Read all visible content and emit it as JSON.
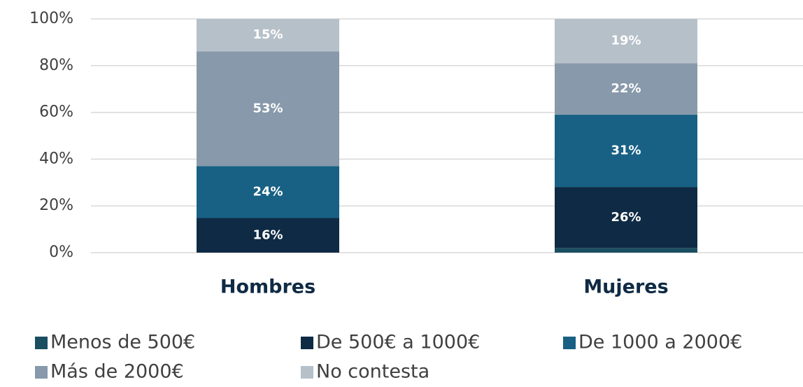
{
  "chart_data": {
    "type": "bar",
    "stacked": "percent",
    "categories": [
      "Hombres",
      "Mujeres"
    ],
    "series": [
      {
        "name": "Menos de 500€",
        "color": "#1a4e60",
        "values": [
          0,
          2
        ],
        "value_labels": [
          null,
          null
        ]
      },
      {
        "name": "De 500€ a 1000€",
        "color": "#0f2a44",
        "values": [
          16,
          26
        ],
        "value_labels": [
          "16%",
          "26%"
        ]
      },
      {
        "name": "De 1000 a 2000€",
        "color": "#186184",
        "values": [
          24,
          31
        ],
        "value_labels": [
          "24%",
          "31%"
        ]
      },
      {
        "name": "Más de 2000€",
        "color": "#8799aa",
        "values": [
          53,
          22
        ],
        "value_labels": [
          "53%",
          "22%"
        ]
      },
      {
        "name": "No contesta",
        "color": "#b6c0c9",
        "values": [
          15,
          19
        ],
        "value_labels": [
          "15%",
          "19%"
        ]
      }
    ],
    "ylim": [
      0,
      100
    ],
    "yticks": [
      {
        "value": 0,
        "label": "0%"
      },
      {
        "value": 20,
        "label": "20%"
      },
      {
        "value": 40,
        "label": "40%"
      },
      {
        "value": 60,
        "label": "60%"
      },
      {
        "value": 80,
        "label": "80%"
      },
      {
        "value": 100,
        "label": "100%"
      }
    ],
    "grid": true
  }
}
